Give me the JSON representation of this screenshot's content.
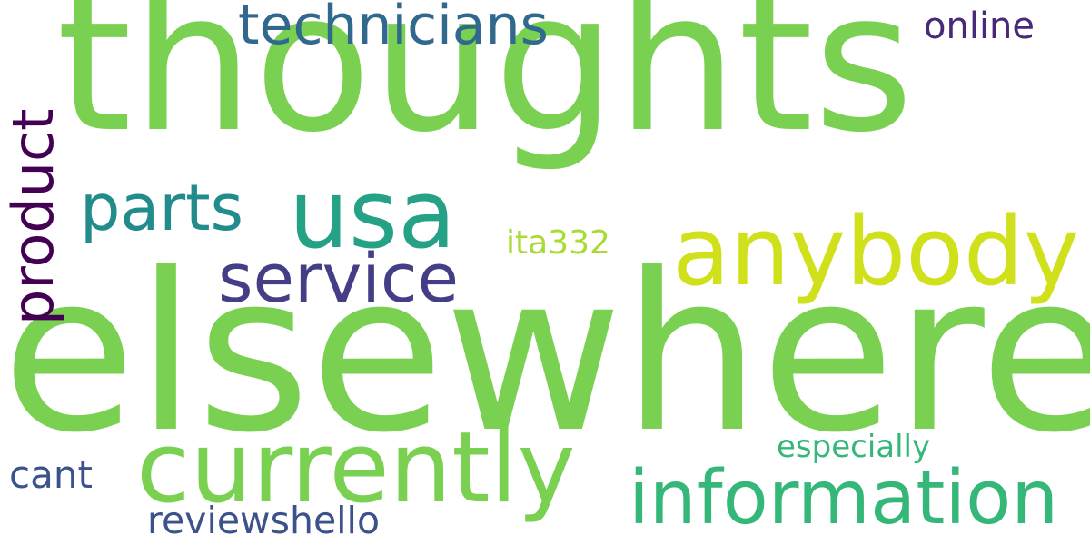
{
  "words": [
    {
      "text": "thoughts",
      "color": "#7ad151"
    },
    {
      "text": "elsewhere",
      "color": "#7ad151"
    },
    {
      "text": "technicians",
      "color": "#31688e"
    },
    {
      "text": "online",
      "color": "#482878"
    },
    {
      "text": "product",
      "color": "#440154"
    },
    {
      "text": "parts",
      "color": "#228c8d"
    },
    {
      "text": "usa",
      "color": "#25a185"
    },
    {
      "text": "anybody",
      "color": "#d0e11c"
    },
    {
      "text": "service",
      "color": "#433e85"
    },
    {
      "text": "ita332",
      "color": "#a8db34"
    },
    {
      "text": "currently",
      "color": "#7ad151"
    },
    {
      "text": "information",
      "color": "#35b779"
    },
    {
      "text": "especially",
      "color": "#35b779"
    },
    {
      "text": "cant",
      "color": "#3b528b"
    },
    {
      "text": "reviewshello",
      "color": "#3b528b"
    }
  ]
}
